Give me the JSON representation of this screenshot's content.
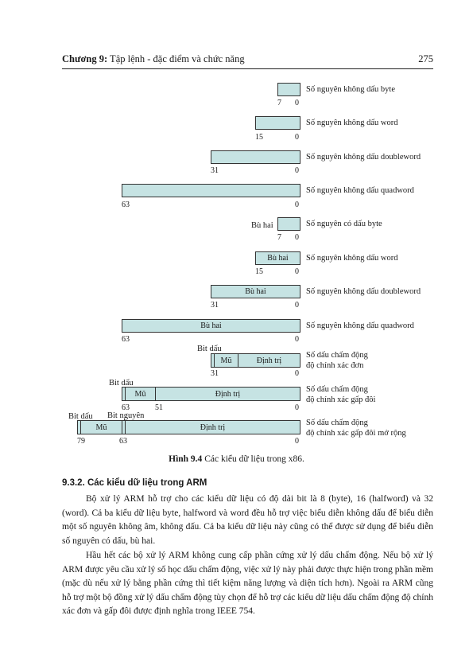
{
  "header": {
    "chapter_bold": "Chương 9:",
    "chapter_title": " Tập lệnh - đặc điểm và chức năng",
    "page_number": "275"
  },
  "figure": {
    "rows": [
      {
        "label": "Số nguyên không dấu byte",
        "left_num": "7",
        "right_num": "0"
      },
      {
        "label": "Số nguyên không dấu word",
        "left_num": "15",
        "right_num": "0"
      },
      {
        "label": "Số nguyên không dấu doubleword",
        "left_num": "31",
        "right_num": "0"
      },
      {
        "label": "Số nguyên không dấu quadword",
        "left_num": "63",
        "right_num": "0"
      },
      {
        "label": "Số nguyên có dấu byte",
        "left_num": "7",
        "right_num": "0",
        "side_text": "Bù hai"
      },
      {
        "label": "Số nguyên không dấu word",
        "left_num": "15",
        "right_num": "0",
        "box_text": "Bù hai"
      },
      {
        "label": "Số nguyên không dấu doubleword",
        "left_num": "31",
        "right_num": "0",
        "box_text": "Bù hai"
      },
      {
        "label": "Số nguyên không dấu quadword",
        "left_num": "63",
        "right_num": "0",
        "box_text": "Bù hai"
      },
      {
        "label_line1": "Số dấu chấm động",
        "label_line2": "độ chính xác đơn",
        "left_num": "31",
        "right_num": "0",
        "sign": "Bit dấu",
        "exp": "Mũ",
        "mant": "Định trị"
      },
      {
        "label_line1": "Số dấu chấm động",
        "label_line2": "độ chính xác gấp đôi",
        "left_num": "63",
        "mid_num": "51",
        "right_num": "0",
        "sign": "Bit dấu",
        "exp": "Mũ",
        "mant": "Định trị"
      },
      {
        "label_line1": "Số dấu chấm động",
        "label_line2": "độ chính xác gấp đôi mở rộng",
        "left_num": "79",
        "mid_num": "63",
        "right_num": "0",
        "sign": "Bit dấu",
        "int_bit": "Bit nguyên",
        "exp": "Mũ",
        "mant": "Định trị"
      }
    ],
    "caption_bold": "Hình 9.4",
    "caption_text": " Các kiểu dữ liệu trong x86."
  },
  "section_title": "9.3.2. Các kiểu dữ liệu trong ARM",
  "paragraphs": [
    "Bộ xử lý ARM hỗ trợ cho các kiểu dữ liệu có độ dài bit là 8 (byte), 16 (halfword) và 32 (word). Cả ba kiểu dữ liệu byte, halfword và word đều hỗ trợ việc biểu diễn không dấu để biểu diễn một số nguyên không âm, không dấu. Cả ba kiểu dữ liệu này cũng có thể được sử dụng để biểu diễn số nguyên có dấu, bù hai.",
    "Hầu hết các bộ xử lý ARM không cung cấp phần cứng xử lý dấu chấm động. Nếu bộ xử lý ARM được yêu cầu xử lý số học dấu chấm động, việc xử lý này phải được thực hiện trong phần mềm (mặc dù nếu xử lý bằng phần cứng thì tiết kiệm năng lượng và diện tích hơn). Ngoài ra ARM cũng hỗ trợ một bộ đồng xử lý dấu chấm động tùy chọn để hỗ trợ các kiểu dữ liệu dấu chấm động độ chính xác đơn và gấp đôi được định nghĩa trong IEEE 754."
  ]
}
